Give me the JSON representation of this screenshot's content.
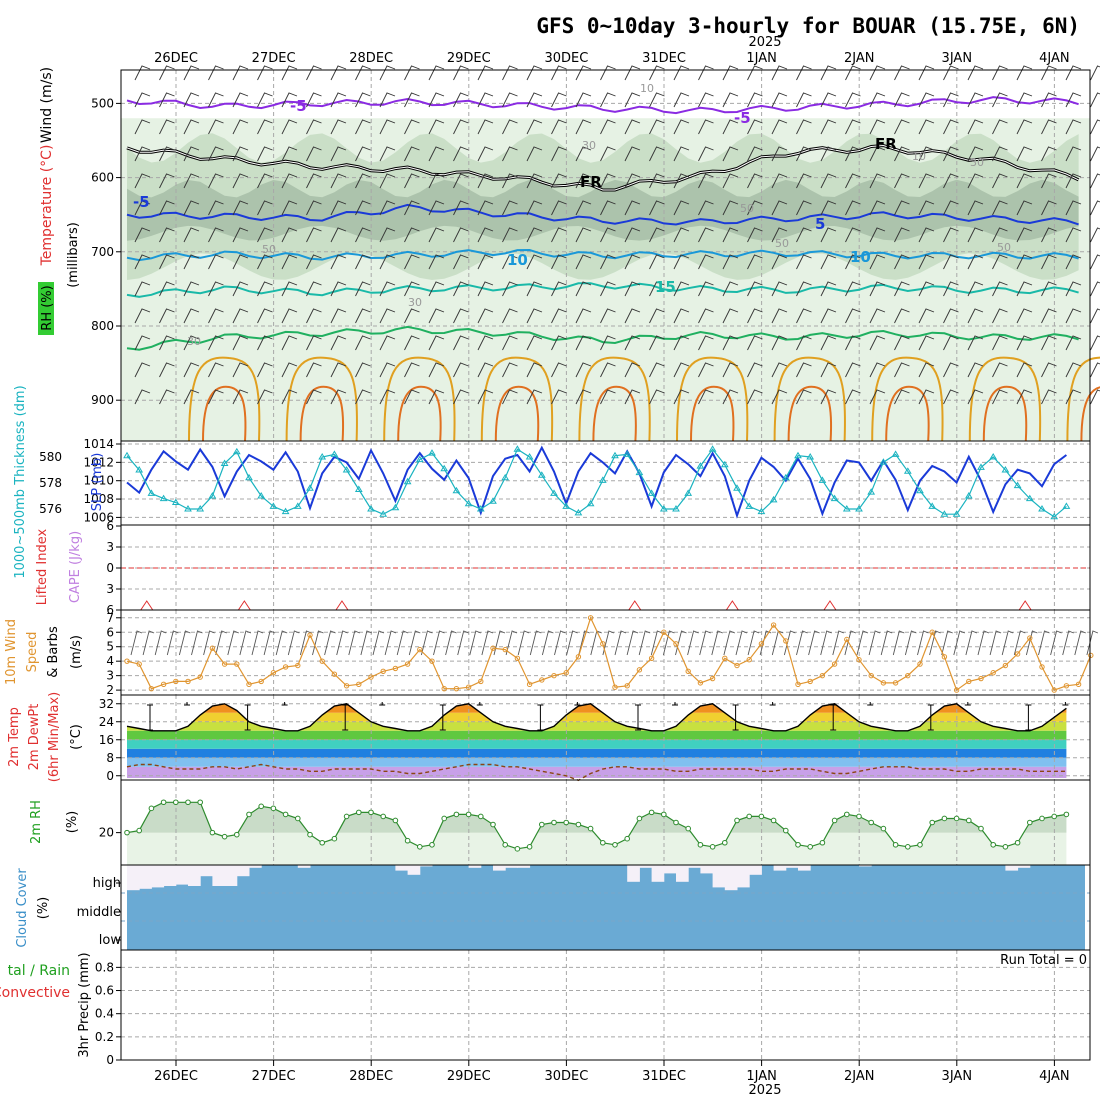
{
  "title": "GFS 0~10day 3-hourly for BOUAR (15.75E, 6N)",
  "colors": {
    "grid": "#a8a8a8",
    "frame": "#000000",
    "rh_fill_light": "#e6f2e4",
    "rh_fill_mid": "#c4dcc2",
    "rh_fill_dark": "#93ab95",
    "temp_m5": "#8a2be2",
    "temp_fr": "#000000",
    "temp_5": "#1a3ad8",
    "temp_10": "#1a98d8",
    "temp_15": "#19b9a8",
    "temp_20": "#20b060",
    "temp_25": "#e0a020",
    "temp_30": "#e07020",
    "slp": "#1a3ad8",
    "thickness": "#1ab3c0",
    "lifted_zero": "#e03030",
    "cape": "#e03030",
    "wind10": "#e09530",
    "barb": "#555555",
    "temp2m_line": "#000000",
    "dewpt_line": "#8b4513",
    "rh2m_line": "#2e8b2e",
    "rh2m_fill_hi": "#c9dcc8",
    "rh2m_fill_lo": "#e8f3e6",
    "cloud_fill": "#6aaad4",
    "cloud_clear": "#f5f0f8",
    "label_wind": "#000000",
    "label_temp": "#e03030",
    "label_rh": "#20a020",
    "label_slp": "#1a3ad8",
    "label_thick": "#1ab3c0",
    "label_li": "#e03030",
    "label_cape": "#c080e0",
    "label_wind10": "#e09530",
    "label_cloud": "#3a8fc8",
    "label_precip_total": "#20a020",
    "label_precip_conv": "#e03030"
  },
  "axes": {
    "top_dates": [
      "26DEC",
      "27DEC",
      "28DEC",
      "29DEC",
      "30DEC",
      "31DEC",
      "1JAN",
      "2JAN",
      "3JAN",
      "4JAN"
    ],
    "bottom_dates": [
      "26DEC",
      "27DEC",
      "28DEC",
      "29DEC",
      "30DEC",
      "31DEC",
      "1JAN",
      "2JAN",
      "3JAN",
      "4JAN"
    ],
    "year_top": "2025",
    "year_bottom": "2025"
  },
  "panel_labels": {
    "upper_wind": "Wind (m/s)",
    "upper_temp": "Temperature (°C)",
    "upper_rh": "RH (%)",
    "upper_unit": "(millibars)",
    "thick": "1000~500mb Thickness (dm)",
    "slp": "SLP (mb)",
    "li": "Lifted Index",
    "cape": "CAPE (J/kg)",
    "wind10": "10m Wind",
    "wind10_b": "Speed",
    "wind10_c": "& Barbs",
    "wind10_unit": "(m/s)",
    "t2m_a": "2m Temp",
    "t2m_b": "2m DewPt",
    "t2m_c": "(6hr Min/Max)",
    "t2m_unit": "(°C)",
    "rh2m": "2m RH",
    "rh2m_unit": "(%)",
    "cloud": "Cloud Cover",
    "cloud_unit": "(%)",
    "cloud_high": "high",
    "cloud_middle": "middle",
    "cloud_low": "low",
    "precip_total": "tal / Rain",
    "precip_conv": "Convective",
    "precip_label": "3hr Precip (mm)",
    "run_total": "Run Total = 0"
  },
  "chart_data": [
    {
      "type": "area",
      "name": "upper-air cross section",
      "y_ticks_mb": [
        500,
        600,
        700,
        800,
        900
      ],
      "ylim_mb": [
        455,
        955
      ],
      "rh_contour_labels": [
        "10",
        "30",
        "30",
        "50",
        "50",
        "50",
        "50",
        "30",
        "10",
        "30"
      ],
      "temp_contour_labels": [
        "-5",
        "-5",
        "FR",
        "FR",
        "-5",
        "5",
        "10",
        "10",
        "15"
      ],
      "isotherms": [
        {
          "label": "-5",
          "level_mb": [
            496,
            504,
            500,
            498,
            502,
            507,
            510,
            506,
            501,
            495,
            498
          ]
        },
        {
          "label": "FR",
          "level_mb": [
            560,
            575,
            585,
            590,
            600,
            615,
            598,
            565,
            560,
            575,
            600
          ]
        },
        {
          "label": "5",
          "level_mb": [
            650,
            652,
            655,
            640,
            650,
            658,
            660,
            655,
            650,
            655,
            660
          ]
        },
        {
          "label": "10",
          "level_mb": [
            708,
            703,
            707,
            704,
            700,
            705,
            703,
            702,
            705,
            705,
            706
          ]
        },
        {
          "label": "15",
          "level_mb": [
            758,
            750,
            755,
            750,
            748,
            745,
            750,
            752,
            748,
            752,
            752
          ]
        },
        {
          "label": "20",
          "level_mb": [
            830,
            815,
            810,
            805,
            810,
            820,
            812,
            815,
            810,
            815,
            815
          ]
        }
      ]
    },
    {
      "type": "line",
      "name": "slp-thickness",
      "ylim_slp": [
        1005.5,
        1014
      ],
      "ylim_thick": [
        575,
        581
      ],
      "y_ticks_slp": [
        1006,
        1008,
        1010,
        1012,
        1014
      ],
      "y_ticks_thick": [
        576,
        578,
        580
      ],
      "slp_mb": [
        1009.8,
        1008.7,
        1011.2,
        1013.2,
        1012.1,
        1011.2,
        1013.4,
        1011.5,
        1008.3,
        1011.0,
        1012.8,
        1012.1,
        1011.2,
        1013.1,
        1011.0,
        1007.0,
        1010.8,
        1012.6,
        1012.0,
        1010.2,
        1013.3,
        1010.8,
        1007.8,
        1011.2,
        1013.0,
        1011.3,
        1010.1,
        1012.2,
        1010.3,
        1006.5,
        1010.5,
        1012.4,
        1012.8,
        1011.0,
        1013.6,
        1011.0,
        1007.5,
        1011.0,
        1013.0,
        1012.0,
        1010.8,
        1013.2,
        1010.8,
        1007.2,
        1010.9,
        1012.8,
        1011.8,
        1010.5,
        1013.0,
        1010.5,
        1006.2,
        1010.0,
        1012.5,
        1011.5,
        1010.0,
        1012.4,
        1010.2,
        1006.4,
        1009.8,
        1012.2,
        1012.0,
        1010.0,
        1012.2,
        1010.1,
        1006.8,
        1010.0,
        1011.6,
        1011.0,
        1009.8,
        1012.6,
        1010.0,
        1006.6,
        1009.6,
        1011.2,
        1010.8,
        1009.4,
        1011.8,
        1012.8
      ],
      "thickness_dm": [
        580.1,
        579.0,
        577.2,
        576.8,
        576.5,
        576.0,
        576.0,
        577.0,
        579.5,
        580.4,
        578.4,
        577.0,
        576.2,
        575.8,
        576.2,
        577.6,
        580.0,
        580.2,
        579.0,
        577.5,
        576.0,
        575.6,
        576.1,
        578.1,
        579.8,
        580.3,
        579.1,
        577.4,
        576.4,
        576.0,
        576.6,
        578.4,
        580.6,
        580.0,
        578.6,
        577.2,
        576.2,
        575.7,
        576.4,
        578.2,
        580.1,
        580.2,
        578.8,
        577.2,
        576.0,
        576.0,
        577.2,
        579.3,
        580.6,
        579.4,
        577.6,
        576.2,
        575.8,
        576.7,
        578.4,
        580.1,
        580.0,
        578.2,
        576.8,
        576.0,
        576.0,
        577.3,
        579.6,
        580.2,
        578.9,
        577.4,
        576.2,
        575.6,
        575.6,
        577.0,
        579.2,
        580.0,
        579.0,
        577.8,
        576.8,
        576.0,
        575.4,
        576.2
      ]
    },
    {
      "type": "line",
      "name": "lifted-index-cape",
      "y_ticks": [
        "6",
        "3",
        "0",
        "3",
        "6"
      ],
      "li_zero": 0,
      "cape_peaks_day": [
        0.1,
        1.1,
        2.1,
        5.1,
        6.1,
        7.1,
        9.1
      ]
    },
    {
      "type": "line",
      "name": "10m-wind-speed",
      "ylim": [
        1.8,
        7.4
      ],
      "y_ticks": [
        2,
        3,
        4,
        5,
        6,
        7
      ],
      "values": [
        4.0,
        3.8,
        2.1,
        2.4,
        2.6,
        2.6,
        2.9,
        4.9,
        3.8,
        3.8,
        2.4,
        2.6,
        3.2,
        3.6,
        3.7,
        5.8,
        4.0,
        3.1,
        2.3,
        2.4,
        2.9,
        3.3,
        3.5,
        3.8,
        4.8,
        4.0,
        2.1,
        2.1,
        2.2,
        2.6,
        4.9,
        4.8,
        4.2,
        2.4,
        2.7,
        3.0,
        3.2,
        4.3,
        7.0,
        5.2,
        2.2,
        2.3,
        3.4,
        4.2,
        6.0,
        5.2,
        3.3,
        2.5,
        2.8,
        4.2,
        3.7,
        4.1,
        5.2,
        6.5,
        5.4,
        2.4,
        2.6,
        3.0,
        3.8,
        5.5,
        4.1,
        3.0,
        2.5,
        2.5,
        3.0,
        3.8,
        6.0,
        4.3,
        2.0,
        2.6,
        2.8,
        3.2,
        3.7,
        4.5,
        5.6,
        3.6,
        2.0,
        2.3,
        2.4,
        4.4
      ]
    },
    {
      "type": "area",
      "name": "2m-temp-dewpt",
      "ylim": [
        -1,
        35
      ],
      "y_ticks": [
        0,
        8,
        16,
        24,
        32
      ],
      "temp_2m": [
        22,
        21,
        20,
        20,
        20,
        22,
        27,
        31,
        32,
        29,
        24,
        22,
        21,
        20,
        20,
        22,
        27,
        31,
        32,
        28,
        24,
        22,
        21,
        20,
        20,
        22,
        27,
        31,
        32,
        28,
        24,
        22,
        21,
        20,
        20,
        22,
        27,
        31,
        32,
        28,
        24,
        22,
        21,
        20,
        20,
        22,
        27,
        31,
        32,
        28,
        24,
        22,
        21,
        20,
        20,
        22,
        27,
        31,
        32,
        28,
        24,
        22,
        21,
        20,
        20,
        22,
        27,
        31,
        32,
        28,
        24,
        22,
        21,
        20,
        20,
        22,
        26,
        30
      ],
      "dewpt_2m": [
        4,
        5,
        5,
        4,
        3,
        3,
        3,
        4,
        4,
        3,
        4,
        5,
        4,
        3,
        3,
        2,
        2,
        3,
        3,
        3,
        3,
        2,
        2,
        1,
        1,
        2,
        3,
        4,
        5,
        5,
        5,
        4,
        4,
        3,
        2,
        1,
        0,
        -2,
        1,
        3,
        4,
        4,
        3,
        3,
        3,
        2,
        2,
        3,
        3,
        3,
        3,
        3,
        2,
        2,
        3,
        3,
        3,
        2,
        1,
        1,
        2,
        3,
        4,
        4,
        4,
        3,
        3,
        3,
        2,
        2,
        3,
        3,
        3,
        3,
        2,
        2,
        2,
        2
      ]
    },
    {
      "type": "area",
      "name": "2m-rh",
      "ylim": [
        5,
        45
      ],
      "y_ticks": [
        20
      ],
      "values": [
        20,
        21,
        32,
        35,
        35,
        35,
        35,
        20,
        18,
        19,
        29,
        33,
        32,
        29,
        27,
        19,
        15,
        17,
        28,
        30,
        30,
        28,
        26,
        16,
        13,
        14,
        27,
        29,
        29,
        28,
        24,
        14,
        12,
        13,
        24,
        25,
        25,
        24,
        22,
        15,
        14,
        17,
        27,
        30,
        29,
        25,
        22,
        14,
        13,
        15,
        26,
        28,
        28,
        26,
        21,
        14,
        13,
        15,
        26,
        29,
        28,
        25,
        22,
        14,
        13,
        14,
        25,
        27,
        27,
        26,
        22,
        14,
        13,
        15,
        25,
        27,
        28,
        29
      ]
    },
    {
      "type": "bar",
      "name": "cloud-cover-high-clear",
      "high_clear_frac": [
        0.9,
        0.85,
        0.8,
        0.75,
        0.7,
        0.75,
        0.4,
        0.75,
        0.75,
        0.4,
        0.1,
        0,
        0,
        0,
        0.1,
        0,
        0,
        0,
        0,
        0,
        0,
        0,
        0.2,
        0.35,
        0.05,
        0,
        0,
        0,
        0.1,
        0,
        0.2,
        0.1,
        0.1,
        0,
        0,
        0,
        0,
        0,
        0,
        0,
        0,
        0.6,
        0.1,
        0.6,
        0.3,
        0.6,
        0.1,
        0.3,
        0.8,
        0.9,
        0.8,
        0.35,
        0,
        0.2,
        0.1,
        0.2,
        0,
        0,
        0,
        0,
        0.05,
        0,
        0,
        0,
        0,
        0,
        0,
        0,
        0,
        0,
        0,
        0,
        0.2,
        0.1,
        0,
        0,
        0,
        0,
        0
      ]
    },
    {
      "type": "bar",
      "name": "3hr-precip",
      "ylim": [
        0,
        0.95
      ],
      "y_ticks": [
        "0",
        "0.2",
        "0.4",
        "0.6",
        "0.8"
      ],
      "values": []
    }
  ]
}
